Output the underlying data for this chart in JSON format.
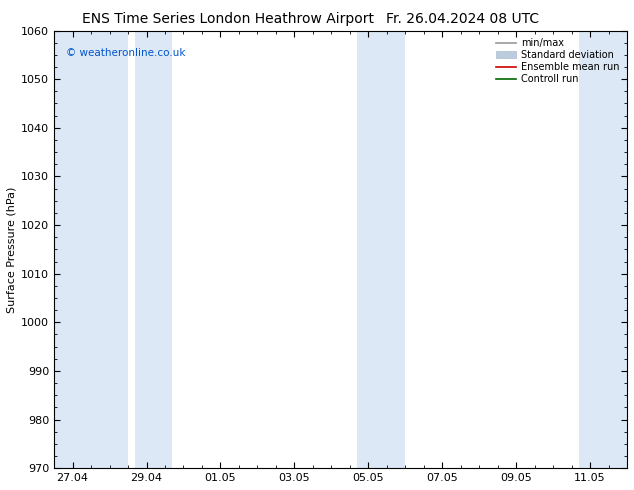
{
  "title_left": "ENS Time Series London Heathrow Airport",
  "title_right": "Fr. 26.04.2024 08 UTC",
  "ylabel": "Surface Pressure (hPa)",
  "ylim": [
    970,
    1060
  ],
  "yticks": [
    970,
    980,
    990,
    1000,
    1010,
    1020,
    1030,
    1040,
    1050,
    1060
  ],
  "x_tick_labels": [
    "27.04",
    "29.04",
    "01.05",
    "03.05",
    "05.05",
    "07.05",
    "09.05",
    "11.05"
  ],
  "x_tick_positions": [
    0,
    2,
    4,
    6,
    8,
    10,
    12,
    14
  ],
  "x_lim": [
    -0.5,
    15.0
  ],
  "blue_band_ranges": [
    [
      -0.5,
      1.5
    ],
    [
      1.7,
      2.7
    ],
    [
      7.7,
      9.0
    ],
    [
      13.7,
      15.0
    ]
  ],
  "band_color": "#dce8f5",
  "background_color": "#ffffff",
  "plot_bg_color": "#ffffff",
  "copyright_text": "© weatheronline.co.uk",
  "copyright_color": "#0055cc",
  "legend_entries": [
    "min/max",
    "Standard deviation",
    "Ensemble mean run",
    "Controll run"
  ],
  "legend_line_colors": [
    "#999999",
    "#bbccdd",
    "#cc0000",
    "#006600"
  ],
  "title_fontsize": 10,
  "axis_fontsize": 8,
  "tick_fontsize": 8
}
